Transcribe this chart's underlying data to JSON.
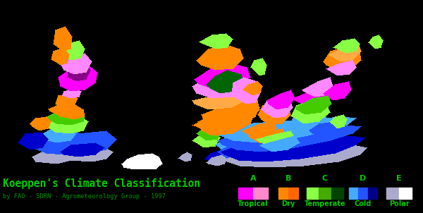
{
  "title": "Koeppen's Climate Classification",
  "subtitle": "by FAO - SDRN - Agrometeorology Group - 1997",
  "title_color": "#00cc00",
  "subtitle_color": "#009900",
  "background_color": "#000000",
  "legend_categories": [
    {
      "letter": "A",
      "label": "Tropical",
      "colors": [
        "#ff00ff",
        "#ff88cc"
      ]
    },
    {
      "letter": "B",
      "label": "Dry",
      "colors": [
        "#ff8800",
        "#ff6600"
      ]
    },
    {
      "letter": "C",
      "label": "Temperate",
      "colors": [
        "#88ff44",
        "#44aa00",
        "#004400"
      ]
    },
    {
      "letter": "D",
      "label": "Cold",
      "colors": [
        "#44aaff",
        "#2255ff",
        "#000088"
      ]
    },
    {
      "letter": "E",
      "label": "Polar",
      "colors": [
        "#aaaacc",
        "#ffffff"
      ]
    }
  ],
  "legend_letter_color": "#00cc00",
  "legend_label_color": "#00cc00",
  "figsize": [
    6.0,
    3.02
  ],
  "dpi": 100
}
